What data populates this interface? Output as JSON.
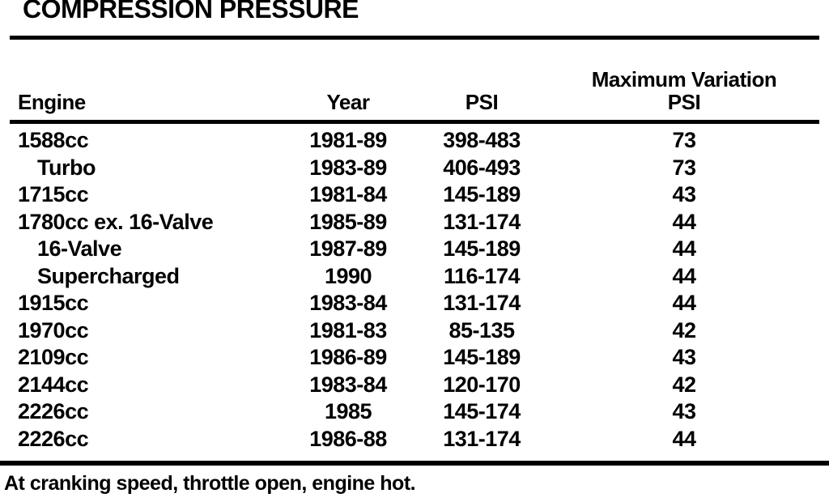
{
  "page": {
    "title": "COMPRESSION PRESSURE",
    "footnote": "At cranking speed, throttle open, engine hot."
  },
  "table": {
    "headers": {
      "engine": "Engine",
      "year": "Year",
      "psi": "PSI",
      "max_variation_line1": "Maximum Variation",
      "max_variation_line2": "PSI"
    },
    "rows": [
      {
        "engine": "1588cc",
        "indent": false,
        "year": "1981-89",
        "psi": "398-483",
        "max_variation": "73"
      },
      {
        "engine": "Turbo",
        "indent": true,
        "year": "1983-89",
        "psi": "406-493",
        "max_variation": "73"
      },
      {
        "engine": "1715cc",
        "indent": false,
        "year": "1981-84",
        "psi": "145-189",
        "max_variation": "43"
      },
      {
        "engine": "1780cc ex. 16-Valve",
        "indent": false,
        "year": "1985-89",
        "psi": "131-174",
        "max_variation": "44"
      },
      {
        "engine": "16-Valve",
        "indent": true,
        "year": "1987-89",
        "psi": "145-189",
        "max_variation": "44"
      },
      {
        "engine": "Supercharged",
        "indent": true,
        "year": "1990",
        "psi": "116-174",
        "max_variation": "44"
      },
      {
        "engine": "1915cc",
        "indent": false,
        "year": "1983-84",
        "psi": "131-174",
        "max_variation": "44"
      },
      {
        "engine": "1970cc",
        "indent": false,
        "year": "1981-83",
        "psi": "85-135",
        "max_variation": "42"
      },
      {
        "engine": "2109cc",
        "indent": false,
        "year": "1986-89",
        "psi": "145-189",
        "max_variation": "43"
      },
      {
        "engine": "2144cc",
        "indent": false,
        "year": "1983-84",
        "psi": "120-170",
        "max_variation": "42"
      },
      {
        "engine": "2226cc",
        "indent": false,
        "year": "1985",
        "psi": "145-174",
        "max_variation": "43"
      },
      {
        "engine": "2226cc",
        "indent": false,
        "year": "1986-88",
        "psi": "131-174",
        "max_variation": "44"
      }
    ]
  },
  "colors": {
    "ink": "#000000",
    "paper": "#ffffff"
  }
}
